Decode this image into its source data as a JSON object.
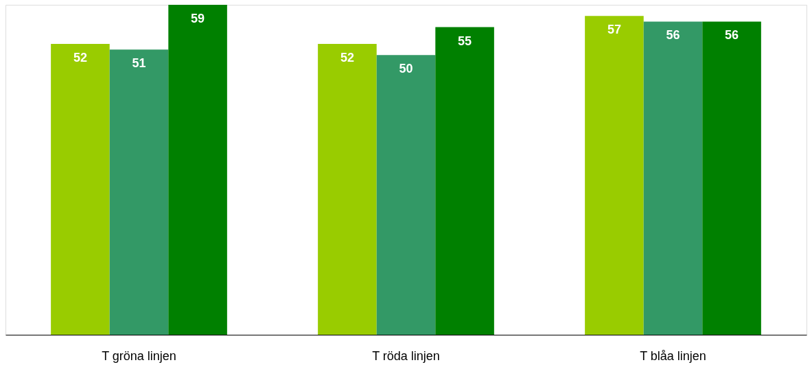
{
  "chart_data": {
    "type": "bar",
    "categories": [
      "T gröna linjen",
      "T röda linjen",
      "T blåa linjen"
    ],
    "series": [
      {
        "color": "#99cc00",
        "values": [
          52,
          52,
          57
        ]
      },
      {
        "color": "#339966",
        "values": [
          51,
          50,
          56
        ]
      },
      {
        "color": "#008000",
        "values": [
          59,
          55,
          56
        ]
      }
    ],
    "data_labels": true,
    "grid": false
  }
}
